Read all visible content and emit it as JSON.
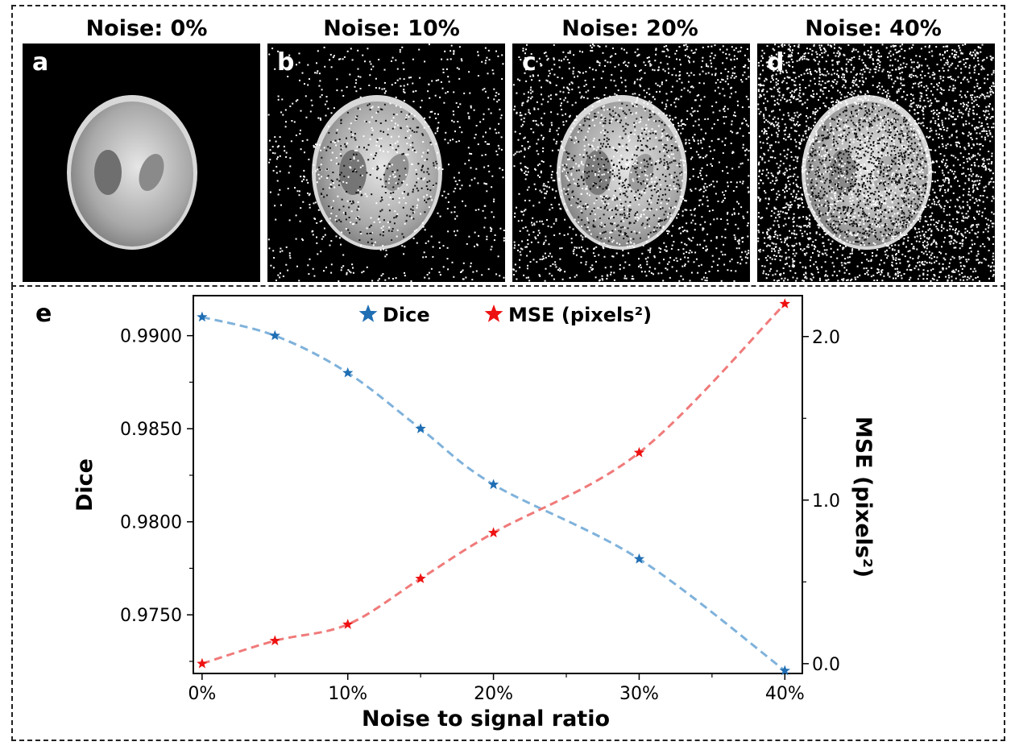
{
  "panels": [
    {
      "title": "Noise: 0%",
      "letter": "a",
      "noise": 0.0
    },
    {
      "title": "Noise: 10%",
      "letter": "b",
      "noise": 0.1
    },
    {
      "title": "Noise: 20%",
      "letter": "c",
      "noise": 0.2
    },
    {
      "title": "Noise: 40%",
      "letter": "d",
      "noise": 0.4
    }
  ],
  "chart_letter": "e",
  "chart_data": {
    "type": "line",
    "x": [
      0,
      5,
      10,
      15,
      20,
      30,
      40
    ],
    "xlabel": "Noise to signal ratio",
    "xticks": [
      0,
      10,
      20,
      30,
      40
    ],
    "xtick_labels": [
      "0%",
      "10%",
      "20%",
      "30%",
      "40%"
    ],
    "xlim": [
      -0.6,
      41.2
    ],
    "ylabel_left": "Dice",
    "ylabel_right": "MSE (pixels²)",
    "ylim_left": [
      0.97185,
      0.99215
    ],
    "ylim_right": [
      -0.06,
      2.25
    ],
    "yticks_left": [
      0.975,
      0.98,
      0.985,
      0.99
    ],
    "ytick_labels_left": [
      "0.9750",
      "0.9800",
      "0.9850",
      "0.9900"
    ],
    "yticks_right": [
      0.0,
      1.0,
      2.0
    ],
    "ytick_labels_right": [
      "0.0",
      "1.0",
      "2.0"
    ],
    "legend_position": "top-center",
    "series": [
      {
        "name": "Dice",
        "axis": "left",
        "color": "#1f6eb4",
        "fit_color": "#7fb2db",
        "values": [
          0.991,
          0.99,
          0.988,
          0.985,
          0.982,
          0.978,
          0.972
        ]
      },
      {
        "name": "MSE (pixels²)",
        "axis": "right",
        "color": "#ee1111",
        "fit_color": "#f07a7a",
        "values": [
          0.0,
          0.14,
          0.24,
          0.52,
          0.8,
          1.29,
          2.2
        ]
      }
    ]
  }
}
